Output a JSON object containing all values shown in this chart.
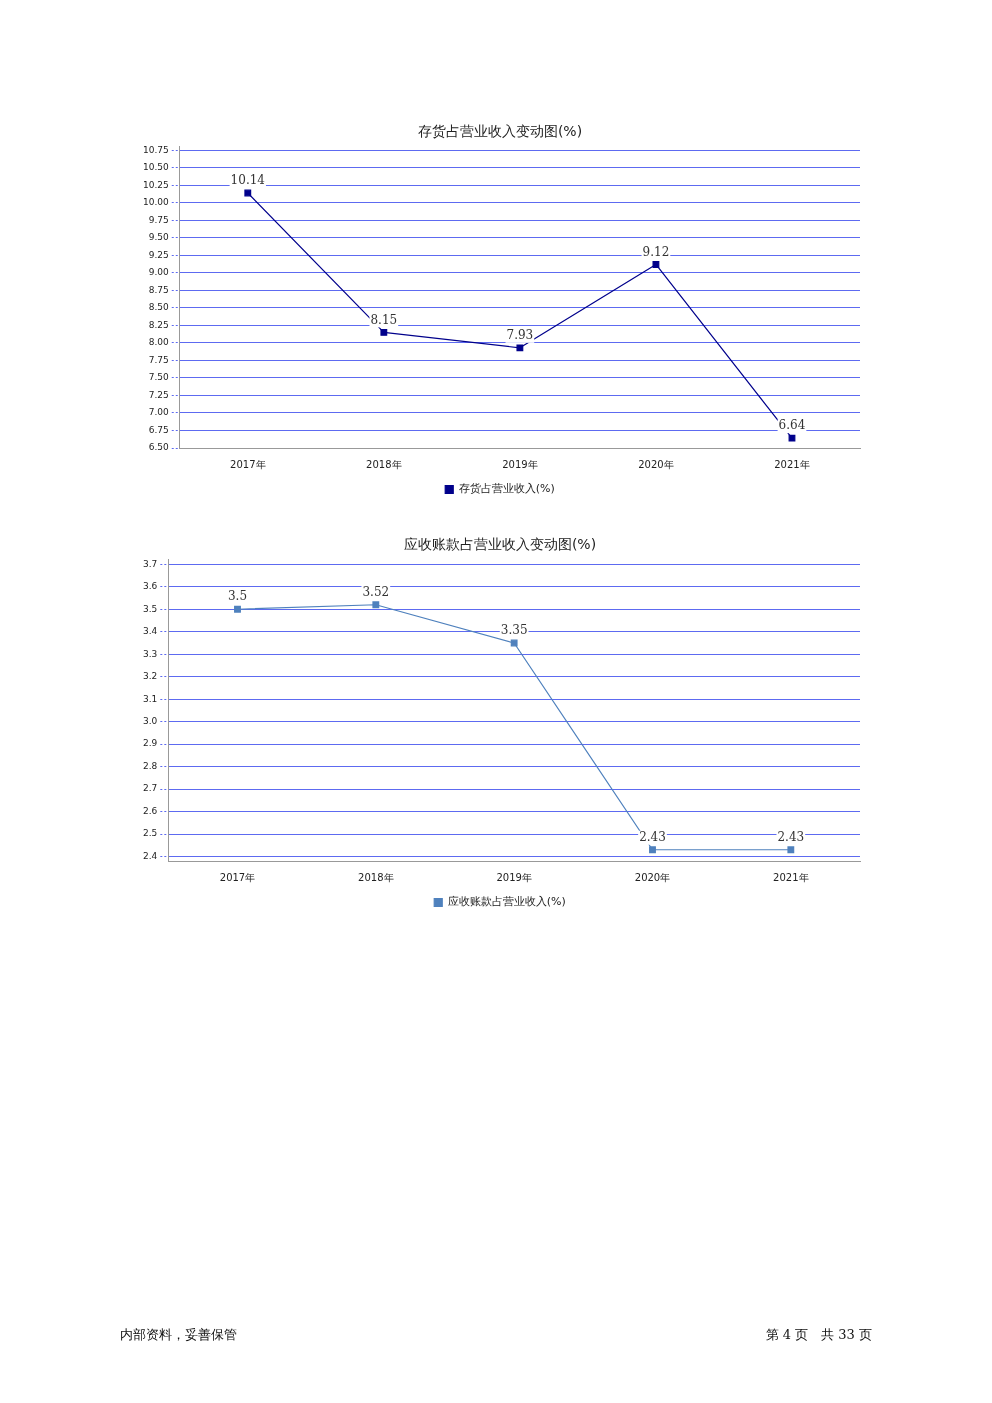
{
  "chart_data": [
    {
      "type": "line",
      "title": "存货占营业收入变动图(%)",
      "categories": [
        "2017年",
        "2018年",
        "2019年",
        "2020年",
        "2021年"
      ],
      "series": [
        {
          "name": "存货占营业收入(%)",
          "color": "#00008b",
          "values": [
            10.14,
            8.15,
            7.93,
            9.12,
            6.64
          ]
        }
      ],
      "ylim": [
        6.5,
        10.8
      ],
      "yticks": [
        {
          "value": 6.5,
          "label": "6.50"
        },
        6.75,
        {
          "value": 7,
          "label": "7.00"
        },
        7.25,
        {
          "value": 7.5,
          "label": "7.50"
        },
        7.75,
        {
          "value": 8,
          "label": "8.00"
        },
        8.25,
        {
          "value": 8.5,
          "label": "8.50"
        },
        8.75,
        {
          "value": 9,
          "label": "9.00"
        },
        9.25,
        {
          "value": 9.5,
          "label": "9.50"
        },
        9.75,
        {
          "value": 10,
          "label": "10.00"
        },
        10.25,
        {
          "value": 10.5,
          "label": "10.50"
        },
        10.75
      ],
      "grid": "y",
      "legend": "bottom",
      "marker": "square",
      "line_style": "solid",
      "data_labels": true
    },
    {
      "type": "line",
      "title": "应收账款占营业收入变动图(%)",
      "categories": [
        "2017年",
        "2018年",
        "2019年",
        "2020年",
        "2021年"
      ],
      "series": [
        {
          "name": "应收账款占营业收入(%)",
          "color": "#4f81bd",
          "values": [
            3.5,
            3.52,
            3.35,
            2.43,
            2.43
          ]
        }
      ],
      "ylim": [
        2.38,
        3.72
      ],
      "yticks": [
        2.4,
        2.5,
        2.6,
        2.7,
        2.8,
        2.9,
        {
          "value": 3,
          "label": "3.0"
        },
        3.1,
        3.2,
        3.3,
        3.4,
        3.5,
        3.6,
        3.7
      ],
      "grid": "y",
      "legend": "bottom",
      "marker": "square",
      "line_style": "solid",
      "data_labels": true,
      "annotations": [
        "内部资料，妥善保管",
        "第 4 页　共 33 页"
      ]
    }
  ]
}
